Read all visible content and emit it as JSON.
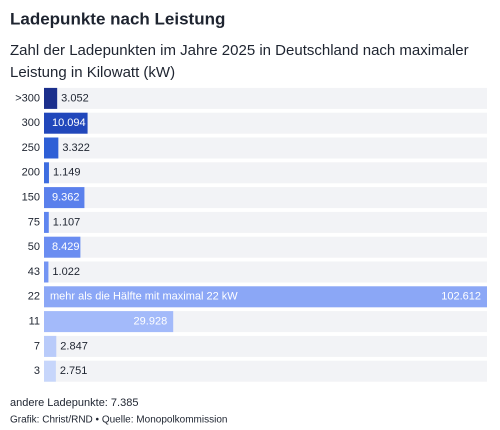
{
  "chart_data": {
    "type": "hbar",
    "title": "Ladepunkte nach Leistung",
    "subtitle": [
      "Zahl der Ladepunkten im Jahre 2025 in Deutschland nach maximaler",
      "Leistung in Kilowatt (kW)"
    ],
    "categories": [
      ">300",
      "300",
      "250",
      "200",
      "150",
      "75",
      "50",
      "43",
      "22",
      "11",
      "7",
      "3"
    ],
    "values": [
      3052,
      10094,
      3322,
      1149,
      9362,
      1107,
      8429,
      1022,
      102612,
      29928,
      2847,
      2751
    ],
    "value_labels": [
      "3.052",
      "10.094",
      "3.322",
      "1.149",
      "9.362",
      "1.107",
      "8.429",
      "1.022",
      "102.612",
      "29.928",
      "2.847",
      "2.751"
    ],
    "colors": [
      "#1b2f8c",
      "#2147bb",
      "#2e5fd6",
      "#3d6de0",
      "#5a80ec",
      "#5e85ef",
      "#6a8df1",
      "#7495f3",
      "#8ba7f6",
      "#a3bafa",
      "#b9cbfa",
      "#c7d6fb"
    ],
    "annotation": {
      "category_index": 8,
      "text": "mehr als die Hälfte mit maximal 22 kW"
    },
    "footnote": "andere Ladepunkte: 7.385",
    "source": "Grafik: Christ/RND • Quelle: Monopolkommission"
  }
}
